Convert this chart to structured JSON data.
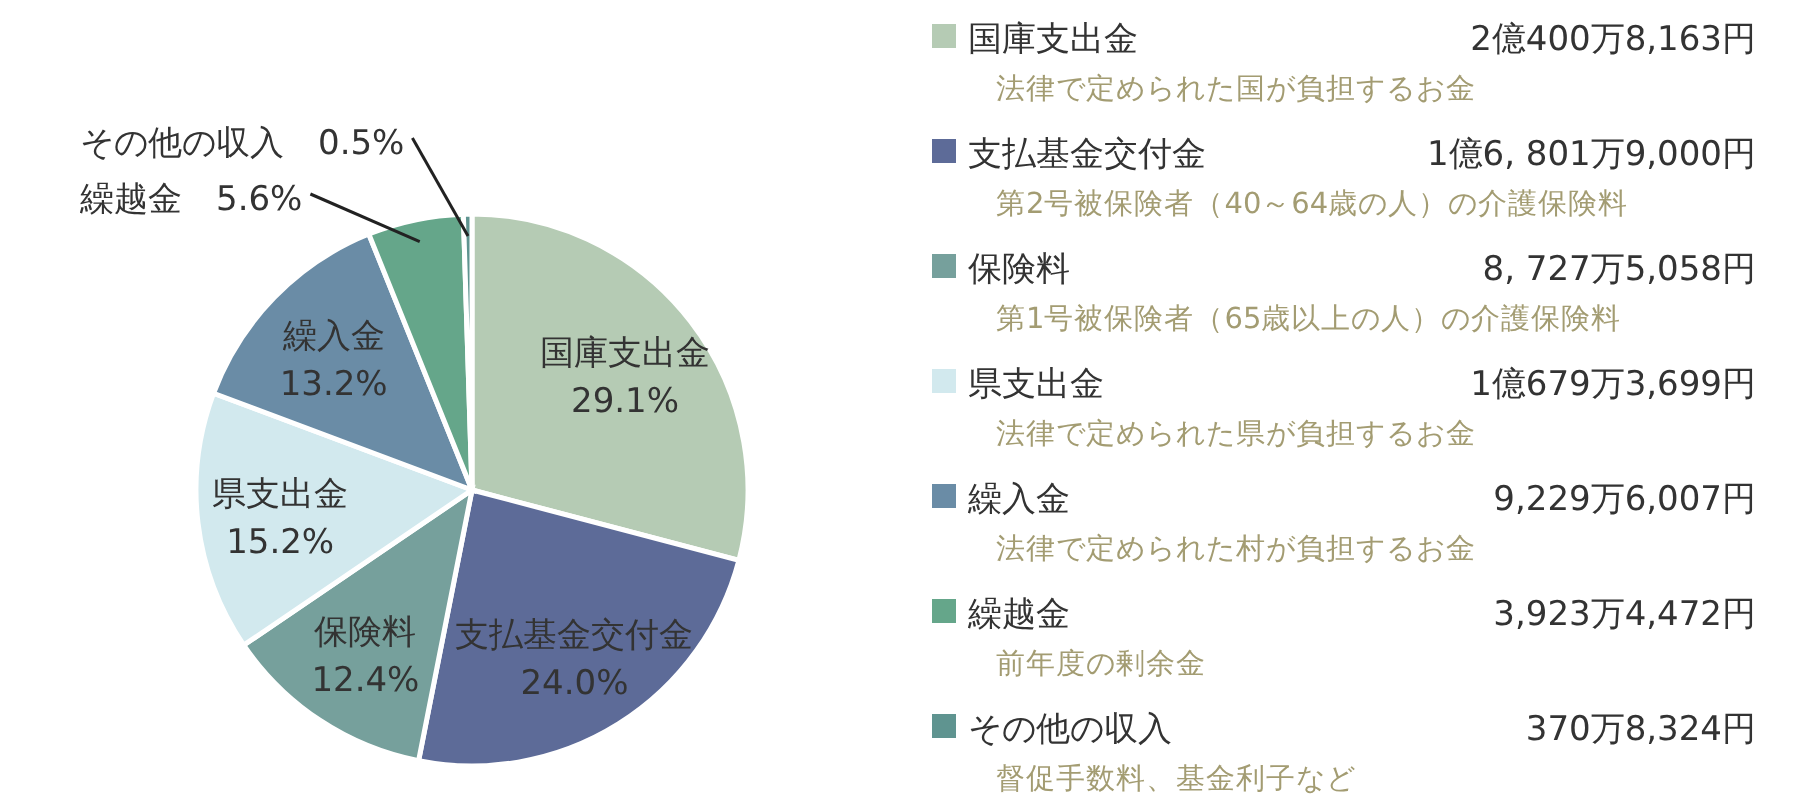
{
  "chart_data": {
    "type": "pie",
    "categories": [
      "国庫支出金",
      "支払基金交付金",
      "保険料",
      "県支出金",
      "繰入金",
      "繰越金",
      "その他の収入"
    ],
    "values": [
      29.1,
      24.0,
      12.4,
      15.2,
      13.2,
      5.6,
      0.5
    ],
    "value_labels": [
      "29.1%",
      "24.0%",
      "12.4%",
      "15.2%",
      "13.2%",
      "5.6%",
      "0.5%"
    ],
    "colors": [
      "#b5cbb4",
      "#5d6b98",
      "#76a09c",
      "#d2e9ee",
      "#6a8ca6",
      "#65a68a",
      "#5f9490"
    ],
    "legend": "right",
    "annotations": [
      "2億400万8,163円",
      "法律で定められた国が負担するお金",
      "1億6, 801万9,000円",
      "第2号被保険者（40～64歳の人）の介護保険料",
      "8, 727万5,058円",
      "第1号被保険者（65歳以上の人）の介護保険料",
      "1億679万3,699円",
      "法律で定められた県が負担するお金",
      "9,229万6,007円",
      "法律で定められた村が負担するお金",
      "3,923万4,472円",
      "前年度の剰余金",
      "370万8,324円",
      "督促手数料、基金利子など"
    ]
  }
}
